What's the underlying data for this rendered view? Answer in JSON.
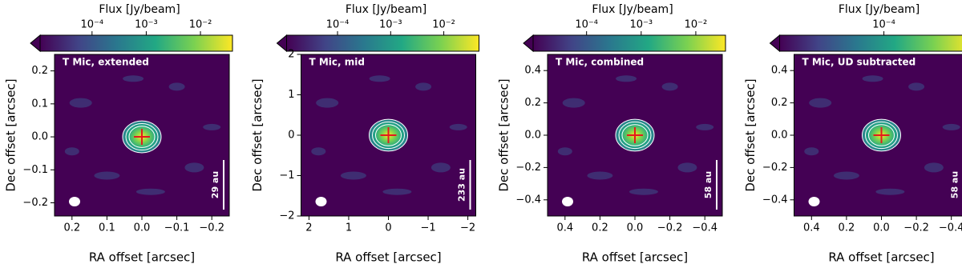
{
  "chart_data": [
    {
      "type": "image",
      "label": "T Mic, extended",
      "colorbar": {
        "label": "Flux [Jy/beam]",
        "scale": "log",
        "lim": [
          1.1e-05,
          0.039
        ],
        "ticks": [
          {
            "value": 0.0001,
            "label": "10⁻⁴"
          },
          {
            "value": 0.001,
            "label": "10⁻³"
          },
          {
            "value": 0.01,
            "label": "10⁻²"
          }
        ]
      },
      "xlabel": "RA offset [arcsec]",
      "ylabel": "Dec offset [arcsec]",
      "xlim": [
        0.25,
        -0.25
      ],
      "ylim": [
        -0.24,
        0.25
      ],
      "xticks": [
        0.2,
        0.1,
        {
          "value": 0,
          "label": "0.0"
        },
        {
          "value": -0.1,
          "label": "−0.1"
        },
        {
          "value": -0.2,
          "label": "−0.2"
        }
      ],
      "yticks": [
        {
          "value": -0.2,
          "label": "−0.2"
        },
        {
          "value": -0.1,
          "label": "−0.1"
        },
        {
          "value": 0,
          "label": "0.0"
        },
        0.1,
        0.2
      ],
      "scale_bar": "29 au"
    },
    {
      "type": "image",
      "label": "T Mic, mid",
      "colorbar": {
        "label": "Flux [Jy/beam]",
        "scale": "log",
        "lim": [
          1.1e-05,
          0.046
        ],
        "ticks": [
          {
            "value": 0.0001,
            "label": "10⁻⁴"
          },
          {
            "value": 0.001,
            "label": "10⁻³"
          },
          {
            "value": 0.01,
            "label": "10⁻²"
          }
        ]
      },
      "xlabel": "RA offset [arcsec]",
      "ylabel": "Dec offset [arcsec]",
      "xlim": [
        2.2,
        -2.2
      ],
      "ylim": [
        -2,
        2
      ],
      "xticks": [
        2,
        1,
        0,
        {
          "value": -1,
          "label": "−1"
        },
        {
          "value": -2,
          "label": "−2"
        }
      ],
      "yticks": [
        {
          "value": -2,
          "label": "−2"
        },
        {
          "value": -1,
          "label": "−1"
        },
        0,
        1,
        2
      ],
      "scale_bar": "233 au"
    },
    {
      "type": "image",
      "label": "T Mic, combined",
      "colorbar": {
        "label": "Flux [Jy/beam]",
        "scale": "log",
        "lim": [
          1.05e-05,
          0.035
        ],
        "ticks": [
          {
            "value": 0.0001,
            "label": "10⁻⁴"
          },
          {
            "value": 0.001,
            "label": "10⁻³"
          },
          {
            "value": 0.01,
            "label": "10⁻²"
          }
        ]
      },
      "xlabel": "RA offset [arcsec]",
      "ylabel": "Dec offset [arcsec]",
      "xlim": [
        0.5,
        -0.5
      ],
      "ylim": [
        -0.5,
        0.5
      ],
      "xticks": [
        0.4,
        0.2,
        {
          "value": 0,
          "label": "0.0"
        },
        {
          "value": -0.2,
          "label": "−0.2"
        },
        {
          "value": -0.4,
          "label": "−0.4"
        }
      ],
      "yticks": [
        {
          "value": -0.4,
          "label": "−0.4"
        },
        {
          "value": -0.2,
          "label": "−0.2"
        },
        {
          "value": 0,
          "label": "0.0"
        },
        0.2,
        0.4
      ],
      "scale_bar": "58 au"
    },
    {
      "type": "image",
      "label": "T Mic, UD subtracted",
      "colorbar": {
        "label": "Flux [Jy/beam]",
        "scale": "log",
        "lim": [
          1.2e-05,
          0.0006
        ],
        "ticks": [
          {
            "value": 0.0001,
            "label": "10⁻⁴"
          }
        ]
      },
      "xlabel": "RA offset [arcsec]",
      "ylabel": "Dec offset [arcsec]",
      "xlim": [
        0.5,
        -0.5
      ],
      "ylim": [
        -0.5,
        0.5
      ],
      "xticks": [
        0.4,
        0.2,
        {
          "value": 0,
          "label": "0.0"
        },
        {
          "value": -0.2,
          "label": "−0.2"
        },
        {
          "value": -0.4,
          "label": "−0.4"
        }
      ],
      "yticks": [
        {
          "value": -0.4,
          "label": "−0.4"
        },
        {
          "value": -0.2,
          "label": "−0.2"
        },
        {
          "value": 0,
          "label": "0.0"
        },
        0.2,
        0.4
      ],
      "scale_bar": "58 au"
    }
  ]
}
